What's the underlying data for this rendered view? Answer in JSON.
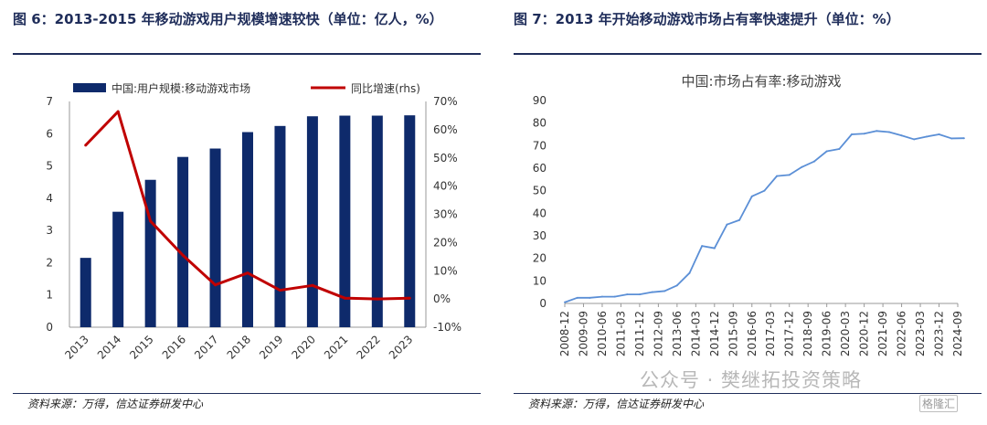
{
  "left": {
    "title": "图  6：2013-2015 年移动游戏用户规模增速较快（单位：亿人，%）",
    "source": "资料来源：万得，信达证券研发中心"
  },
  "right": {
    "title": "图 7：2013 年开始移动游戏市场占有率快速提升（单位：%）",
    "source": "资料来源：万得，信达证券研发中心"
  },
  "watermark": {
    "text": "公众号 · 樊继拓投资策略",
    "logo": "格隆汇"
  },
  "colors": {
    "bar": "#0e2a6b",
    "line": "#c00000",
    "series": "#5b8fd6",
    "title": "#1f2d5a"
  },
  "chart_data": [
    {
      "type": "bar",
      "categories": [
        "2013",
        "2014",
        "2015",
        "2016",
        "2017",
        "2018",
        "2019",
        "2020",
        "2021",
        "2022",
        "2023"
      ],
      "series": [
        {
          "name": "中国:用户规模:移动游戏市场",
          "type": "bar",
          "axis": "left",
          "values": [
            2.15,
            3.58,
            4.57,
            5.28,
            5.54,
            6.05,
            6.24,
            6.54,
            6.56,
            6.56,
            6.57
          ]
        },
        {
          "name": "同比增速(rhs)",
          "type": "line",
          "axis": "right",
          "values": [
            54.5,
            66.4,
            27.6,
            15.5,
            5.0,
            9.2,
            3.1,
            4.8,
            0.3,
            0.0,
            0.3
          ]
        }
      ],
      "ylim_left": [
        0,
        7
      ],
      "yticks_left": [
        "0",
        "1",
        "2",
        "3",
        "4",
        "5",
        "6",
        "7"
      ],
      "ylim_right": [
        -10,
        70
      ],
      "yticks_right": [
        "-10%",
        "0%",
        "10%",
        "20%",
        "30%",
        "40%",
        "50%",
        "60%",
        "70%"
      ],
      "legend_position": "top"
    },
    {
      "type": "line",
      "title": "中国:市场占有率:移动游戏",
      "ylim": [
        0,
        90
      ],
      "yticks": [
        "0",
        "10",
        "20",
        "30",
        "40",
        "50",
        "60",
        "70",
        "80",
        "90"
      ],
      "xtick_labels": [
        "2008-12",
        "2009-09",
        "2010-06",
        "2011-03",
        "2011-12",
        "2012-09",
        "2013-06",
        "2014-03",
        "2014-12",
        "2015-09",
        "2016-06",
        "2017-03",
        "2017-12",
        "2018-09",
        "2019-06",
        "2020-03",
        "2020-12",
        "2021-09",
        "2022-06",
        "2023-03",
        "2023-12",
        "2024-09"
      ],
      "x": [
        "2008-12",
        "2009-06",
        "2009-12",
        "2010-06",
        "2010-12",
        "2011-06",
        "2011-12",
        "2012-06",
        "2012-12",
        "2013-06",
        "2013-12",
        "2014-06",
        "2014-12",
        "2015-06",
        "2015-12",
        "2016-06",
        "2016-12",
        "2017-06",
        "2017-12",
        "2018-06",
        "2018-12",
        "2019-06",
        "2019-12",
        "2020-06",
        "2020-12",
        "2021-06",
        "2021-12",
        "2022-06",
        "2022-12",
        "2023-06",
        "2023-12",
        "2024-06",
        "2024-12"
      ],
      "values": [
        0.5,
        2.5,
        2.5,
        3,
        3,
        4,
        4,
        5,
        5.5,
        8,
        13.5,
        25.5,
        24.5,
        35,
        37,
        47.5,
        50,
        56.5,
        57,
        60.5,
        63,
        67.5,
        68.5,
        75,
        75.3,
        76.5,
        76,
        74.5,
        72.8,
        74,
        75,
        73.2,
        73.3
      ],
      "grid": false
    }
  ]
}
